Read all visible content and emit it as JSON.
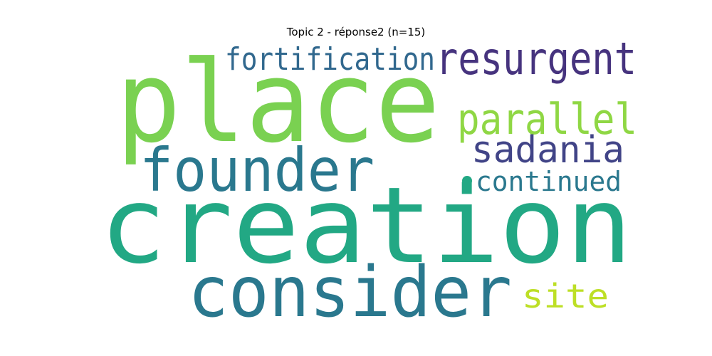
{
  "chart_data": {
    "type": "wordcloud",
    "title": "Topic 2 - réponse2 (n=15)",
    "words": [
      {
        "text": "place",
        "color": "#7ad151"
      },
      {
        "text": "creation",
        "color": "#22a884"
      },
      {
        "text": "consider",
        "color": "#2a788e"
      },
      {
        "text": "founder",
        "color": "#2a788e"
      },
      {
        "text": "fortification",
        "color": "#31688e"
      },
      {
        "text": "resurgent",
        "color": "#46337e"
      },
      {
        "text": "parallel",
        "color": "#8fd744"
      },
      {
        "text": "sadania",
        "color": "#414487"
      },
      {
        "text": "continued",
        "color": "#2a788e"
      },
      {
        "text": "site",
        "color": "#bddf26"
      }
    ],
    "dot_color": "#22a884"
  }
}
